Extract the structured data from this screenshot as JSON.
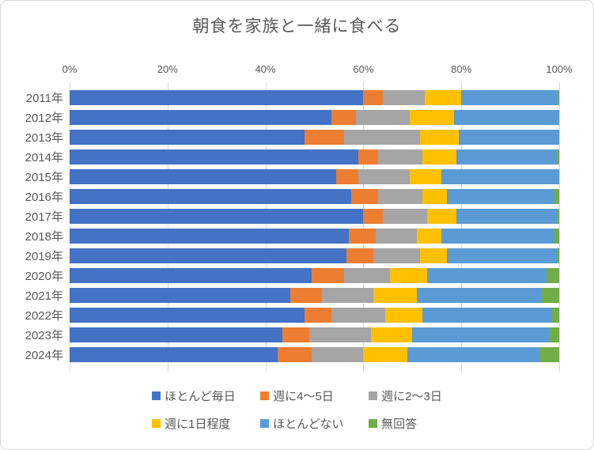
{
  "title": "朝食を家族と一緒に食べる",
  "chart_data": {
    "type": "bar",
    "stacked": true,
    "orientation": "horizontal",
    "title": "朝食を家族と一緒に食べる",
    "unit": "%",
    "categories": [
      "2011年",
      "2012年",
      "2013年",
      "2014年",
      "2015年",
      "2016年",
      "2017年",
      "2018年",
      "2019年",
      "2020年",
      "2021年",
      "2022年",
      "2023年",
      "2024年"
    ],
    "series": [
      {
        "name": "ほとんど毎日",
        "color": "#4472C4",
        "values": [
          60,
          53.5,
          48,
          59,
          54.5,
          57.5,
          60,
          57,
          56.5,
          49.5,
          45,
          48,
          43.5,
          42.5
        ]
      },
      {
        "name": "週に4～5日",
        "color": "#ED7D31",
        "values": [
          4,
          5,
          8,
          4,
          4.5,
          5.5,
          4,
          5.5,
          5.5,
          6.5,
          6.5,
          5.5,
          5.5,
          7
        ]
      },
      {
        "name": "週に2～3日",
        "color": "#A5A5A5",
        "values": [
          8.5,
          11,
          15.5,
          9,
          10.5,
          9,
          9,
          8.5,
          9.5,
          9.5,
          10.5,
          11,
          12.5,
          10.5
        ]
      },
      {
        "name": "週に1日程度",
        "color": "#FFC000",
        "values": [
          7.5,
          9,
          8,
          7,
          6.5,
          5,
          6,
          5,
          5.5,
          7.5,
          9,
          7.5,
          8.5,
          9
        ]
      },
      {
        "name": "ほとんどない",
        "color": "#5B9BD5",
        "values": [
          19.8,
          21.5,
          20.5,
          20.5,
          24,
          22,
          20.5,
          23,
          22.5,
          24.5,
          25.5,
          26.5,
          28,
          27
        ]
      },
      {
        "name": "無回答",
        "color": "#70AD47",
        "values": [
          0.2,
          0,
          0,
          0.5,
          0,
          1,
          0.5,
          1,
          0.5,
          2.5,
          3.5,
          1.5,
          2,
          4
        ]
      }
    ],
    "x_axis": {
      "min": 0,
      "max": 100,
      "tick_step": 20,
      "ticks": [
        "0%",
        "20%",
        "40%",
        "60%",
        "80%",
        "100%"
      ]
    },
    "legend_position": "bottom",
    "legend_rows": [
      [
        "ほとんど毎日",
        "週に4～5日",
        "週に2～3日"
      ],
      [
        "週に1日程度",
        "ほとんどない",
        "無回答"
      ]
    ],
    "grid": true
  }
}
